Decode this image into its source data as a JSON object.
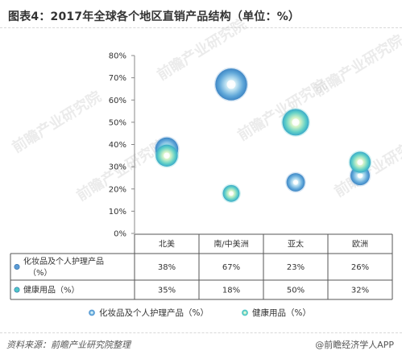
{
  "title": "图表4：2017年全球各个地区直销产品结构（单位：%）",
  "source": "资料来源：前瞻产业研究院整理",
  "brand": "@前瞻经济学人APP",
  "watermark": "前瞻产业研究院",
  "chart_data": {
    "type": "bubble",
    "categories": [
      "北美",
      "南/中美洲",
      "亚太",
      "欧洲"
    ],
    "ylim": [
      0,
      80
    ],
    "yticks": [
      "0%",
      "10%",
      "20%",
      "30%",
      "40%",
      "50%",
      "60%",
      "70%",
      "80%"
    ],
    "series": [
      {
        "name": "化妆品及个人护理产品（%）",
        "values": [
          38,
          67,
          23,
          26
        ],
        "display": [
          "38%",
          "67%",
          "23%",
          "26%"
        ],
        "color": "#5b9bd5"
      },
      {
        "name": "健康用品（%）",
        "values": [
          35,
          18,
          50,
          32
        ],
        "display": [
          "35%",
          "18%",
          "50%",
          "32%"
        ],
        "color": "#4fc7c7"
      }
    ],
    "data_table": true,
    "legend_position": "bottom",
    "grid": false
  }
}
